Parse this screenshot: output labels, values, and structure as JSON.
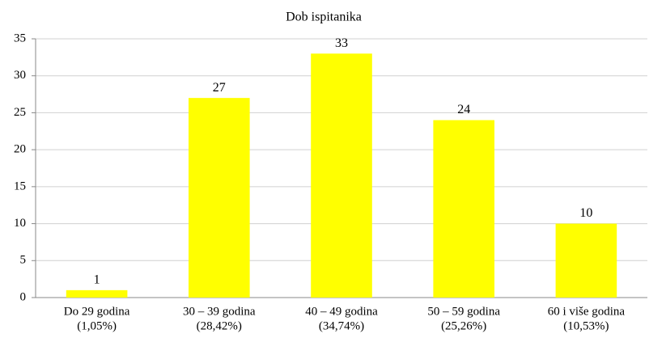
{
  "chart_data": {
    "type": "bar",
    "title": "Dob ispitanika",
    "categories": [
      [
        "Do 29 godina",
        "(1,05%)"
      ],
      [
        "30 – 39 godina",
        "(28,42%)"
      ],
      [
        "40 – 49 godina",
        "(34,74%)"
      ],
      [
        "50 – 59 godina",
        "(25,26%)"
      ],
      [
        "60 i više godina",
        "(10,53%)"
      ]
    ],
    "values": [
      1,
      27,
      33,
      24,
      10
    ],
    "color": "#ffff00",
    "ylim": [
      0,
      35
    ],
    "yticks": [
      0,
      5,
      10,
      15,
      20,
      25,
      30,
      35
    ],
    "grid": true
  }
}
